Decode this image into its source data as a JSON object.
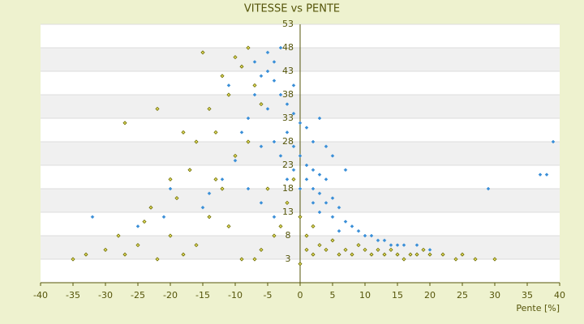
{
  "chart_data": {
    "type": "scatter",
    "title": "VITESSE vs PENTE",
    "x_label": "Pente [%]",
    "xlim": [
      -40,
      40
    ],
    "xticks": [
      -40,
      -35,
      -30,
      -25,
      -20,
      -15,
      -10,
      -5,
      0,
      5,
      10,
      15,
      20,
      25,
      30,
      35,
      40
    ],
    "ylim": [
      -2,
      53
    ],
    "yticks": [
      53,
      48,
      43,
      38,
      33,
      28,
      23,
      18,
      13,
      8,
      3
    ],
    "grid": true,
    "series": [
      {
        "color": "#3a8fd8",
        "x": [
          -5,
          -4,
          -5,
          -4,
          -6,
          -3,
          -2,
          -1,
          0,
          1,
          -2,
          -4,
          -6,
          -8,
          -9,
          -3,
          -1,
          0,
          1,
          2,
          3,
          4,
          2,
          3,
          5,
          4,
          6,
          1,
          -1,
          -2,
          0,
          2,
          3,
          5,
          7,
          8,
          6,
          9,
          10,
          11,
          12,
          13,
          14,
          15,
          16,
          18,
          20,
          -10,
          -12,
          -14,
          -15,
          -17,
          -20,
          -21,
          -25,
          -32,
          -8,
          -6,
          -4,
          29,
          37,
          38,
          39,
          -7,
          -3,
          -11,
          5,
          7,
          -5,
          2,
          4,
          -1,
          -7,
          3
        ],
        "values": [
          47,
          45,
          43,
          41,
          42,
          38,
          36,
          34,
          32,
          31,
          30,
          28,
          27,
          33,
          30,
          25,
          27,
          25,
          23,
          22,
          21,
          20,
          18,
          17,
          16,
          15,
          14,
          20,
          22,
          20,
          18,
          15,
          13,
          12,
          11,
          10,
          9,
          9,
          8,
          8,
          7,
          7,
          6,
          6,
          6,
          6,
          5,
          24,
          20,
          17,
          14,
          22,
          18,
          12,
          10,
          12,
          18,
          15,
          12,
          18,
          21,
          21,
          28,
          45,
          48,
          40,
          25,
          22,
          35,
          28,
          27,
          40,
          38,
          33
        ]
      },
      {
        "color": "#6b6b00",
        "x": [
          -35,
          -33,
          -30,
          -28,
          -27,
          -25,
          -24,
          -23,
          -22,
          -20,
          -19,
          -18,
          -17,
          -16,
          -15,
          -14,
          -13,
          -12,
          -11,
          -10,
          -9,
          -8,
          -7,
          -6,
          -10,
          -12,
          -14,
          -16,
          -9,
          -6,
          -4,
          -2,
          -1,
          0,
          1,
          1,
          2,
          3,
          4,
          5,
          6,
          7,
          8,
          9,
          10,
          11,
          12,
          13,
          14,
          15,
          16,
          17,
          18,
          19,
          20,
          22,
          24,
          25,
          27,
          30,
          -27,
          -22,
          -18,
          -20,
          -8,
          -5,
          -3,
          2,
          -11,
          -7,
          0,
          -13
        ],
        "values": [
          3,
          4,
          5,
          8,
          4,
          6,
          11,
          14,
          3,
          8,
          16,
          4,
          22,
          28,
          47,
          35,
          30,
          42,
          38,
          46,
          44,
          48,
          40,
          36,
          25,
          18,
          12,
          6,
          3,
          5,
          8,
          15,
          20,
          12,
          8,
          5,
          4,
          6,
          5,
          7,
          4,
          5,
          4,
          6,
          5,
          4,
          5,
          4,
          5,
          4,
          3,
          4,
          4,
          5,
          4,
          4,
          3,
          4,
          3,
          3,
          32,
          35,
          30,
          20,
          28,
          18,
          10,
          10,
          10,
          3,
          2,
          20
        ]
      }
    ]
  }
}
